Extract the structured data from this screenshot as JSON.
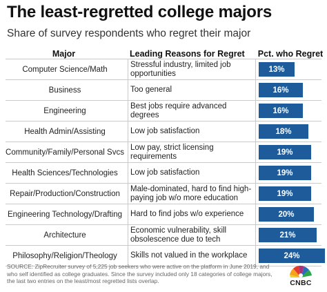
{
  "title": "The least-regretted college majors",
  "subtitle": "Share of survey respondents who regret their major",
  "headers": {
    "major": "Major",
    "reason": "Leading Reasons for Regret",
    "pct": "Pct. who Regret"
  },
  "chart_data": {
    "type": "table",
    "bar_color": "#1d5b9b",
    "columns": [
      "Major",
      "Leading Reasons for Regret",
      "Pct. who Regret"
    ],
    "rows": [
      {
        "major": "Computer Science/Math",
        "reason": "Stressful industry, limited job opportunities",
        "value": 13,
        "label": "13%"
      },
      {
        "major": "Business",
        "reason": "Too general",
        "value": 16,
        "label": "16%"
      },
      {
        "major": "Engineering",
        "reason": "Best jobs require advanced degrees",
        "value": 16,
        "label": "16%"
      },
      {
        "major": "Health Admin/Assisting",
        "reason": "Low job satisfaction",
        "value": 18,
        "label": "18%"
      },
      {
        "major": "Community/Family/Personal Svcs",
        "reason": "Low pay, strict licensing requirements",
        "value": 19,
        "label": "19%"
      },
      {
        "major": "Health Sciences/Technologies",
        "reason": "Low job satisfaction",
        "value": 19,
        "label": "19%"
      },
      {
        "major": "Repair/Production/Construction",
        "reason": "Male-dominated, hard to find high-paying job w/o more education",
        "value": 19,
        "label": "19%"
      },
      {
        "major": "Engineering Technology/Drafting",
        "reason": "Hard to find jobs w/o experience",
        "value": 20,
        "label": "20%"
      },
      {
        "major": "Architecture",
        "reason": "Economic vulnerability, skill obsolescence due to tech",
        "value": 21,
        "label": "21%"
      },
      {
        "major": "Philosophy/Religion/Theology",
        "reason": "Skills not valued in the workplace",
        "value": 24,
        "label": "24%"
      }
    ]
  },
  "source": "SOURCE: ZipRecruiter survey of 5,225 job seekers who were active on the platform in June 2019, and who self identified as college graduates. Since the survey included only 18 categories of college majors, the last two entries on the least/most regretted lists overlap.",
  "logo": {
    "text": "CNBC",
    "icon": "cnbc-peacock-logo"
  }
}
